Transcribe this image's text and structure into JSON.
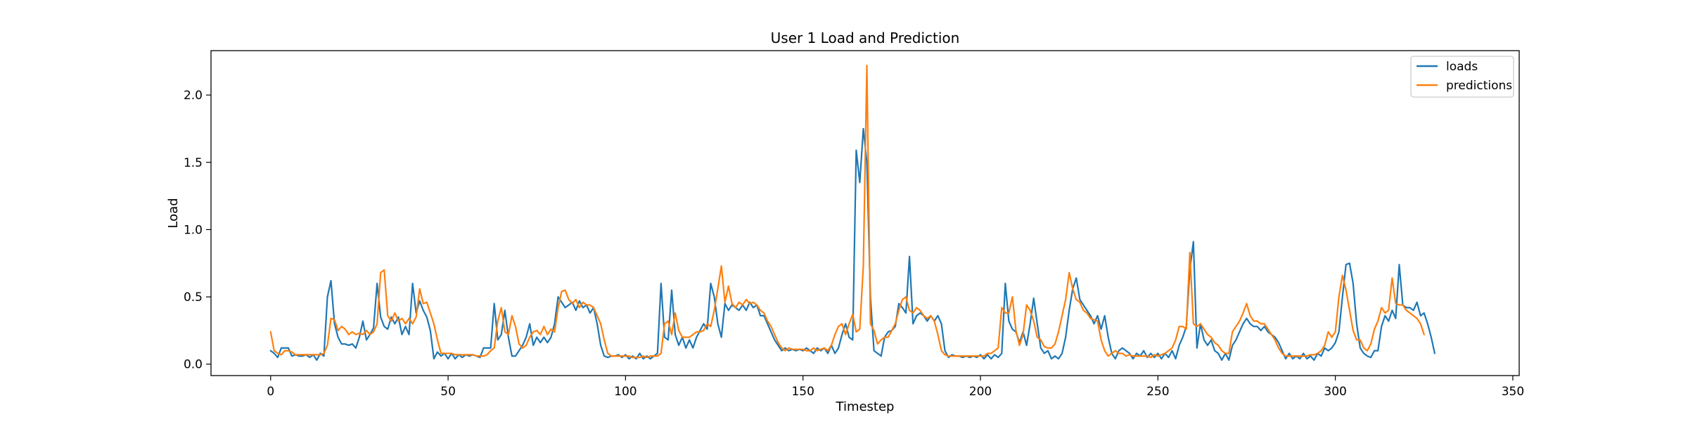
{
  "chart_data": {
    "type": "line",
    "title": "User 1 Load and Prediction",
    "xlabel": "Timestep",
    "ylabel": "Load",
    "xlim": [
      -16.8,
      351.8
    ],
    "ylim": [
      -0.085,
      2.33
    ],
    "xticks": [
      0,
      50,
      100,
      150,
      200,
      250,
      300,
      350
    ],
    "xtick_labels": [
      "0",
      "50",
      "100",
      "150",
      "200",
      "250",
      "300",
      "350"
    ],
    "yticks": [
      0.0,
      0.5,
      1.0,
      1.5,
      2.0
    ],
    "ytick_labels": [
      "0.0",
      "0.5",
      "1.0",
      "1.5",
      "2.0"
    ],
    "grid": false,
    "legend_position": "top-right",
    "series": [
      {
        "name": "loads",
        "color": "#1f77b4",
        "values": [
          0.1,
          0.08,
          0.05,
          0.12,
          0.12,
          0.12,
          0.06,
          0.07,
          0.06,
          0.06,
          0.07,
          0.05,
          0.07,
          0.03,
          0.08,
          0.06,
          0.5,
          0.62,
          0.3,
          0.2,
          0.15,
          0.15,
          0.14,
          0.15,
          0.12,
          0.2,
          0.32,
          0.18,
          0.22,
          0.27,
          0.6,
          0.35,
          0.28,
          0.26,
          0.35,
          0.3,
          0.35,
          0.22,
          0.28,
          0.22,
          0.6,
          0.38,
          0.47,
          0.4,
          0.35,
          0.25,
          0.04,
          0.09,
          0.06,
          0.08,
          0.04,
          0.08,
          0.04,
          0.07,
          0.05,
          0.07,
          0.06,
          0.07,
          0.06,
          0.05,
          0.12,
          0.12,
          0.12,
          0.45,
          0.18,
          0.22,
          0.4,
          0.2,
          0.06,
          0.06,
          0.1,
          0.14,
          0.2,
          0.3,
          0.14,
          0.2,
          0.16,
          0.2,
          0.16,
          0.2,
          0.3,
          0.5,
          0.46,
          0.42,
          0.44,
          0.46,
          0.4,
          0.47,
          0.42,
          0.44,
          0.38,
          0.42,
          0.3,
          0.14,
          0.06,
          0.05,
          0.06,
          0.06,
          0.07,
          0.05,
          0.07,
          0.04,
          0.06,
          0.04,
          0.08,
          0.04,
          0.06,
          0.04,
          0.06,
          0.08,
          0.6,
          0.2,
          0.18,
          0.55,
          0.22,
          0.14,
          0.2,
          0.12,
          0.18,
          0.12,
          0.2,
          0.25,
          0.3,
          0.26,
          0.6,
          0.5,
          0.3,
          0.2,
          0.45,
          0.4,
          0.44,
          0.42,
          0.4,
          0.44,
          0.4,
          0.46,
          0.42,
          0.44,
          0.36,
          0.36,
          0.3,
          0.24,
          0.18,
          0.14,
          0.1,
          0.12,
          0.1,
          0.11,
          0.1,
          0.11,
          0.1,
          0.12,
          0.1,
          0.08,
          0.12,
          0.1,
          0.12,
          0.08,
          0.14,
          0.08,
          0.12,
          0.22,
          0.3,
          0.2,
          0.18,
          1.59,
          1.35,
          1.75,
          1.5,
          0.5,
          0.1,
          0.08,
          0.06,
          0.2,
          0.24,
          0.25,
          0.28,
          0.45,
          0.42,
          0.38,
          0.8,
          0.3,
          0.36,
          0.38,
          0.36,
          0.32,
          0.36,
          0.32,
          0.36,
          0.3,
          0.1,
          0.05,
          0.07,
          0.06,
          0.06,
          0.05,
          0.06,
          0.05,
          0.06,
          0.05,
          0.07,
          0.04,
          0.07,
          0.04,
          0.07,
          0.05,
          0.08,
          0.6,
          0.32,
          0.26,
          0.24,
          0.16,
          0.24,
          0.14,
          0.3,
          0.49,
          0.3,
          0.12,
          0.08,
          0.1,
          0.04,
          0.06,
          0.04,
          0.08,
          0.2,
          0.4,
          0.56,
          0.64,
          0.48,
          0.44,
          0.4,
          0.36,
          0.3,
          0.36,
          0.26,
          0.36,
          0.2,
          0.08,
          0.04,
          0.1,
          0.12,
          0.1,
          0.08,
          0.04,
          0.08,
          0.06,
          0.1,
          0.05,
          0.08,
          0.05,
          0.08,
          0.04,
          0.08,
          0.05,
          0.1,
          0.04,
          0.14,
          0.2,
          0.28,
          0.7,
          0.91,
          0.12,
          0.3,
          0.18,
          0.14,
          0.18,
          0.1,
          0.08,
          0.03,
          0.08,
          0.03,
          0.14,
          0.18,
          0.24,
          0.3,
          0.34,
          0.3,
          0.28,
          0.28,
          0.25,
          0.28,
          0.24,
          0.22,
          0.2,
          0.16,
          0.1,
          0.04,
          0.08,
          0.04,
          0.06,
          0.04,
          0.08,
          0.04,
          0.06,
          0.03,
          0.08,
          0.06,
          0.12,
          0.1,
          0.12,
          0.16,
          0.24,
          0.5,
          0.74,
          0.75,
          0.6,
          0.3,
          0.12,
          0.08,
          0.06,
          0.05,
          0.1,
          0.1,
          0.28,
          0.36,
          0.32,
          0.4,
          0.34,
          0.74,
          0.44,
          0.42,
          0.42,
          0.4,
          0.46,
          0.36,
          0.38,
          0.3,
          0.2,
          0.08
        ]
      },
      {
        "name": "predictions",
        "color": "#ff7f0e",
        "values": [
          0.24,
          0.1,
          0.08,
          0.07,
          0.1,
          0.1,
          0.09,
          0.07,
          0.07,
          0.07,
          0.07,
          0.07,
          0.07,
          0.07,
          0.07,
          0.08,
          0.14,
          0.34,
          0.33,
          0.25,
          0.28,
          0.26,
          0.22,
          0.24,
          0.22,
          0.23,
          0.22,
          0.25,
          0.22,
          0.24,
          0.3,
          0.68,
          0.7,
          0.36,
          0.32,
          0.38,
          0.32,
          0.34,
          0.3,
          0.34,
          0.3,
          0.35,
          0.56,
          0.45,
          0.46,
          0.38,
          0.3,
          0.18,
          0.08,
          0.08,
          0.08,
          0.08,
          0.07,
          0.07,
          0.07,
          0.07,
          0.07,
          0.07,
          0.06,
          0.06,
          0.06,
          0.07,
          0.1,
          0.12,
          0.32,
          0.42,
          0.24,
          0.22,
          0.36,
          0.28,
          0.15,
          0.12,
          0.14,
          0.2,
          0.24,
          0.25,
          0.22,
          0.28,
          0.22,
          0.26,
          0.24,
          0.42,
          0.54,
          0.55,
          0.48,
          0.45,
          0.48,
          0.42,
          0.46,
          0.44,
          0.44,
          0.42,
          0.36,
          0.3,
          0.18,
          0.08,
          0.06,
          0.06,
          0.06,
          0.06,
          0.06,
          0.06,
          0.05,
          0.05,
          0.05,
          0.06,
          0.05,
          0.06,
          0.06,
          0.06,
          0.08,
          0.3,
          0.32,
          0.22,
          0.38,
          0.25,
          0.2,
          0.2,
          0.2,
          0.22,
          0.24,
          0.24,
          0.25,
          0.3,
          0.28,
          0.4,
          0.56,
          0.73,
          0.46,
          0.58,
          0.45,
          0.42,
          0.46,
          0.44,
          0.48,
          0.45,
          0.46,
          0.44,
          0.4,
          0.38,
          0.32,
          0.28,
          0.22,
          0.16,
          0.12,
          0.1,
          0.12,
          0.11,
          0.11,
          0.11,
          0.11,
          0.1,
          0.1,
          0.12,
          0.1,
          0.11,
          0.12,
          0.1,
          0.14,
          0.22,
          0.28,
          0.3,
          0.22,
          0.3,
          0.37,
          0.24,
          0.26,
          0.73,
          2.22,
          0.3,
          0.25,
          0.15,
          0.18,
          0.2,
          0.2,
          0.25,
          0.3,
          0.4,
          0.48,
          0.5,
          0.4,
          0.38,
          0.42,
          0.4,
          0.36,
          0.34,
          0.36,
          0.32,
          0.22,
          0.1,
          0.07,
          0.06,
          0.06,
          0.06,
          0.06,
          0.06,
          0.06,
          0.06,
          0.06,
          0.06,
          0.06,
          0.06,
          0.08,
          0.08,
          0.1,
          0.12,
          0.42,
          0.38,
          0.38,
          0.5,
          0.25,
          0.14,
          0.22,
          0.44,
          0.4,
          0.32,
          0.2,
          0.18,
          0.13,
          0.12,
          0.12,
          0.15,
          0.24,
          0.36,
          0.48,
          0.68,
          0.56,
          0.48,
          0.46,
          0.4,
          0.38,
          0.34,
          0.33,
          0.32,
          0.18,
          0.1,
          0.06,
          0.08,
          0.1,
          0.08,
          0.08,
          0.06,
          0.07,
          0.06,
          0.06,
          0.06,
          0.06,
          0.06,
          0.05,
          0.07,
          0.06,
          0.07,
          0.08,
          0.1,
          0.12,
          0.18,
          0.28,
          0.28,
          0.26,
          0.83,
          0.3,
          0.28,
          0.3,
          0.26,
          0.22,
          0.2,
          0.16,
          0.14,
          0.1,
          0.08,
          0.08,
          0.24,
          0.28,
          0.32,
          0.38,
          0.45,
          0.36,
          0.32,
          0.32,
          0.3,
          0.3,
          0.26,
          0.22,
          0.18,
          0.12,
          0.08,
          0.06,
          0.06,
          0.06,
          0.06,
          0.06,
          0.06,
          0.06,
          0.07,
          0.07,
          0.08,
          0.1,
          0.14,
          0.24,
          0.2,
          0.24,
          0.5,
          0.66,
          0.55,
          0.4,
          0.25,
          0.18,
          0.18,
          0.12,
          0.1,
          0.15,
          0.26,
          0.32,
          0.42,
          0.38,
          0.4,
          0.64,
          0.45,
          0.44,
          0.44,
          0.4,
          0.38,
          0.36,
          0.34,
          0.3,
          0.22
        ]
      }
    ]
  }
}
